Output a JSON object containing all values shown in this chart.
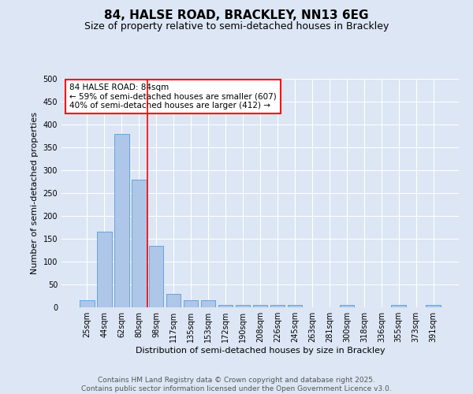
{
  "title": "84, HALSE ROAD, BRACKLEY, NN13 6EG",
  "subtitle": "Size of property relative to semi-detached houses in Brackley",
  "xlabel": "Distribution of semi-detached houses by size in Brackley",
  "ylabel": "Number of semi-detached properties",
  "categories": [
    "25sqm",
    "44sqm",
    "62sqm",
    "80sqm",
    "98sqm",
    "117sqm",
    "135sqm",
    "153sqm",
    "172sqm",
    "190sqm",
    "208sqm",
    "226sqm",
    "245sqm",
    "263sqm",
    "281sqm",
    "300sqm",
    "318sqm",
    "336sqm",
    "355sqm",
    "373sqm",
    "391sqm"
  ],
  "values": [
    15,
    165,
    380,
    280,
    135,
    30,
    15,
    15,
    5,
    5,
    5,
    5,
    5,
    0,
    0,
    5,
    0,
    0,
    5,
    0,
    5
  ],
  "bar_color": "#aec6e8",
  "bar_edge_color": "#5b9bd5",
  "red_line_x": 3,
  "annotation_title": "84 HALSE ROAD: 84sqm",
  "annotation_line1": "← 59% of semi-detached houses are smaller (607)",
  "annotation_line2": "40% of semi-detached houses are larger (412) →",
  "ylim": [
    0,
    500
  ],
  "yticks": [
    0,
    50,
    100,
    150,
    200,
    250,
    300,
    350,
    400,
    450,
    500
  ],
  "background_color": "#dce6f5",
  "plot_bg_color": "#dce6f5",
  "footer_line1": "Contains HM Land Registry data © Crown copyright and database right 2025.",
  "footer_line2": "Contains public sector information licensed under the Open Government Licence v3.0.",
  "title_fontsize": 11,
  "subtitle_fontsize": 9,
  "axis_label_fontsize": 8,
  "tick_fontsize": 7,
  "annotation_fontsize": 7.5,
  "footer_fontsize": 6.5
}
